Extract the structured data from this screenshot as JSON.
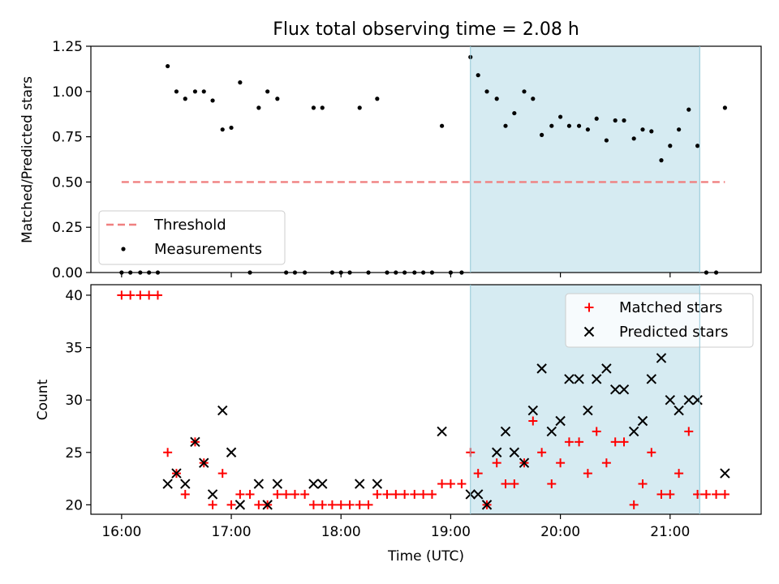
{
  "title": "Flux total observing time = 2.08 h",
  "colors": {
    "threshold": "#f08080",
    "measurement": "#000000",
    "matched": "#ff0000",
    "predicted": "#000000",
    "shade": "#add8e6"
  },
  "chart_data": [
    {
      "type": "scatter",
      "ylabel": "Matched/Predicted stars",
      "ylim": [
        0,
        1.25
      ],
      "yticks": [
        "0.00",
        "0.25",
        "0.50",
        "0.75",
        "1.00",
        "1.25"
      ],
      "xlim": [
        15.72,
        21.83
      ],
      "shaded_x": [
        19.18,
        21.27
      ],
      "threshold": {
        "label": "Threshold",
        "value": 0.5,
        "x_range": [
          16.0,
          21.5
        ]
      },
      "measurements": {
        "label": "Measurements",
        "x": [
          16.0,
          16.08,
          16.17,
          16.25,
          16.33,
          16.42,
          16.5,
          16.58,
          16.67,
          16.75,
          16.83,
          16.92,
          17.0,
          17.08,
          17.17,
          17.25,
          17.33,
          17.42,
          17.5,
          17.58,
          17.67,
          17.75,
          17.83,
          17.92,
          18.0,
          18.08,
          18.17,
          18.25,
          18.33,
          18.42,
          18.5,
          18.58,
          18.67,
          18.75,
          18.83,
          18.92,
          19.0,
          19.1,
          19.18,
          19.25,
          19.33,
          19.42,
          19.5,
          19.58,
          19.67,
          19.75,
          19.83,
          19.92,
          20.0,
          20.08,
          20.17,
          20.25,
          20.33,
          20.42,
          20.5,
          20.58,
          20.67,
          20.75,
          20.83,
          20.92,
          21.0,
          21.08,
          21.17,
          21.25,
          21.33,
          21.42,
          21.5
        ],
        "y": [
          0,
          0,
          0,
          0,
          0,
          1.14,
          1.0,
          0.96,
          1.0,
          1.0,
          0.95,
          0.79,
          0.8,
          1.05,
          0,
          0.91,
          1.0,
          0.96,
          0,
          0,
          0,
          0.91,
          0.91,
          0,
          0,
          0,
          0.91,
          0,
          0.96,
          0,
          0,
          0,
          0,
          0,
          0,
          0.81,
          0,
          0,
          1.19,
          1.09,
          1.0,
          0.96,
          0.81,
          0.88,
          1.0,
          0.96,
          0.76,
          0.81,
          0.86,
          0.81,
          0.81,
          0.79,
          0.85,
          0.73,
          0.84,
          0.84,
          0.74,
          0.79,
          0.78,
          0.62,
          0.7,
          0.79,
          0.9,
          0.7,
          0,
          0,
          0.91
        ]
      },
      "legend": "lower-left"
    },
    {
      "type": "scatter",
      "ylabel": "Count",
      "xlabel": "Time (UTC)",
      "ylim": [
        19.1,
        41.0
      ],
      "yticks": [
        "20",
        "25",
        "30",
        "35",
        "40"
      ],
      "xlim": [
        15.72,
        21.83
      ],
      "xticks": [
        "16:00",
        "17:00",
        "18:00",
        "19:00",
        "20:00",
        "21:00"
      ],
      "shaded_x": [
        19.18,
        21.27
      ],
      "matched": {
        "label": "Matched stars",
        "x": [
          16.0,
          16.08,
          16.17,
          16.25,
          16.33,
          16.42,
          16.5,
          16.58,
          16.67,
          16.75,
          16.83,
          16.92,
          17.0,
          17.08,
          17.17,
          17.25,
          17.33,
          17.42,
          17.5,
          17.58,
          17.67,
          17.75,
          17.83,
          17.92,
          18.0,
          18.08,
          18.17,
          18.25,
          18.33,
          18.42,
          18.5,
          18.58,
          18.67,
          18.75,
          18.83,
          18.92,
          19.0,
          19.1,
          19.18,
          19.25,
          19.33,
          19.42,
          19.5,
          19.58,
          19.67,
          19.75,
          19.83,
          19.92,
          20.0,
          20.08,
          20.17,
          20.25,
          20.33,
          20.42,
          20.5,
          20.58,
          20.67,
          20.75,
          20.83,
          20.92,
          21.0,
          21.08,
          21.17,
          21.25,
          21.33,
          21.42,
          21.5
        ],
        "y": [
          40,
          40,
          40,
          40,
          40,
          25,
          23,
          21,
          26,
          24,
          20,
          23,
          20,
          21,
          21,
          20,
          20,
          21,
          21,
          21,
          21,
          20,
          20,
          20,
          20,
          20,
          20,
          20,
          21,
          21,
          21,
          21,
          21,
          21,
          21,
          22,
          22,
          22,
          25,
          23,
          20,
          24,
          22,
          22,
          24,
          28,
          25,
          22,
          24,
          26,
          26,
          23,
          27,
          24,
          26,
          26,
          20,
          22,
          25,
          21,
          21,
          23,
          27,
          21,
          21,
          21,
          21
        ]
      },
      "predicted": {
        "label": "Predicted stars",
        "x": [
          16.42,
          16.5,
          16.58,
          16.67,
          16.75,
          16.83,
          16.92,
          17.0,
          17.08,
          17.25,
          17.33,
          17.42,
          17.75,
          17.83,
          18.17,
          18.33,
          18.92,
          19.18,
          19.25,
          19.33,
          19.42,
          19.5,
          19.58,
          19.67,
          19.75,
          19.83,
          19.92,
          20.0,
          20.08,
          20.17,
          20.25,
          20.33,
          20.42,
          20.5,
          20.58,
          20.67,
          20.75,
          20.83,
          20.92,
          21.0,
          21.08,
          21.17,
          21.25,
          21.5
        ],
        "y": [
          22,
          23,
          22,
          26,
          24,
          21,
          29,
          25,
          20,
          22,
          20,
          22,
          22,
          22,
          22,
          22,
          27,
          21,
          21,
          20,
          25,
          27,
          25,
          24,
          29,
          33,
          27,
          28,
          32,
          32,
          29,
          32,
          33,
          31,
          31,
          27,
          28,
          32,
          34,
          30,
          29,
          30,
          30,
          23
        ]
      },
      "legend": "top-right"
    }
  ]
}
